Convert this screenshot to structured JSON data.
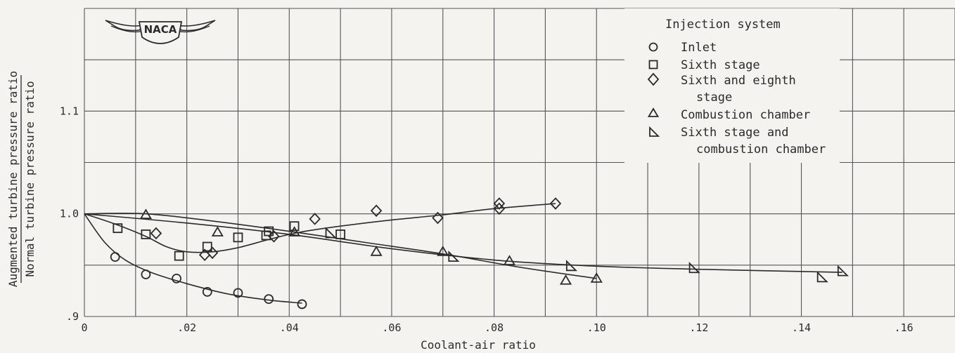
{
  "chart_data": {
    "type": "scatter",
    "xlabel": "Coolant-air ratio",
    "ylabel_numerator": "Augmented turbine pressure ratio",
    "ylabel_denominator": "Normal turbine pressure ratio",
    "xlim": [
      0,
      0.17
    ],
    "ylim": [
      0.9,
      1.2
    ],
    "x_tick_values": [
      0,
      0.02,
      0.04,
      0.06,
      0.08,
      0.1,
      0.12,
      0.14,
      0.16
    ],
    "x_tick_labels": [
      "0",
      ".02",
      ".04",
      ".06",
      ".08",
      ".10",
      ".12",
      ".14",
      ".16"
    ],
    "y_tick_values": [
      0.9,
      1.0,
      1.1
    ],
    "y_tick_labels": [
      ".9",
      "1.0",
      "1.1"
    ],
    "grid": true,
    "legend_title": "Injection system",
    "legend_position": "top-right",
    "logo_text": "NACA",
    "series": [
      {
        "name": "Inlet",
        "marker": "circle",
        "points": [
          [
            0.006,
            0.958
          ],
          [
            0.012,
            0.941
          ],
          [
            0.018,
            0.937
          ],
          [
            0.024,
            0.924
          ],
          [
            0.03,
            0.923
          ],
          [
            0.036,
            0.917
          ],
          [
            0.0425,
            0.912
          ]
        ],
        "curve": [
          [
            0,
            1.0
          ],
          [
            0.004,
            0.972
          ],
          [
            0.008,
            0.955
          ],
          [
            0.013,
            0.943
          ],
          [
            0.02,
            0.932
          ],
          [
            0.028,
            0.922
          ],
          [
            0.036,
            0.916
          ],
          [
            0.0425,
            0.913
          ]
        ]
      },
      {
        "name": "Sixth stage",
        "marker": "square",
        "points": [
          [
            0.0065,
            0.986
          ],
          [
            0.012,
            0.98
          ],
          [
            0.0185,
            0.959
          ],
          [
            0.024,
            0.968
          ],
          [
            0.03,
            0.977
          ],
          [
            0.0355,
            0.979
          ],
          [
            0.036,
            0.983
          ],
          [
            0.041,
            0.988
          ],
          [
            0.05,
            0.98
          ]
        ],
        "curve": null
      },
      {
        "name": "Sixth and eighth stage",
        "marker": "diamond",
        "points": [
          [
            0.014,
            0.981
          ],
          [
            0.0235,
            0.96
          ],
          [
            0.025,
            0.962
          ],
          [
            0.037,
            0.978
          ],
          [
            0.045,
            0.995
          ],
          [
            0.057,
            1.003
          ],
          [
            0.069,
            0.996
          ],
          [
            0.081,
            1.01
          ],
          [
            0.081,
            1.005
          ],
          [
            0.092,
            1.01
          ]
        ],
        "curve": [
          [
            0,
            1.0
          ],
          [
            0.006,
            0.99
          ],
          [
            0.012,
            0.978
          ],
          [
            0.016,
            0.968
          ],
          [
            0.02,
            0.963
          ],
          [
            0.025,
            0.963
          ],
          [
            0.03,
            0.967
          ],
          [
            0.036,
            0.975
          ],
          [
            0.042,
            0.982
          ],
          [
            0.05,
            0.988
          ],
          [
            0.06,
            0.994
          ],
          [
            0.07,
            0.999
          ],
          [
            0.08,
            1.005
          ],
          [
            0.092,
            1.01
          ]
        ]
      },
      {
        "name": "Combustion chamber",
        "marker": "triangle",
        "points": [
          [
            0.012,
            0.999
          ],
          [
            0.026,
            0.982
          ],
          [
            0.041,
            0.982
          ],
          [
            0.057,
            0.963
          ],
          [
            0.07,
            0.963
          ],
          [
            0.083,
            0.954
          ],
          [
            0.094,
            0.935
          ],
          [
            0.1,
            0.937
          ]
        ],
        "curve": [
          [
            0,
            1.0
          ],
          [
            0.012,
            1.0
          ],
          [
            0.025,
            0.993
          ],
          [
            0.04,
            0.983
          ],
          [
            0.055,
            0.972
          ],
          [
            0.07,
            0.961
          ],
          [
            0.085,
            0.948
          ],
          [
            0.1,
            0.937
          ]
        ]
      },
      {
        "name": "Sixth stage and combustion chamber",
        "marker": "right-triangle",
        "points": [
          [
            0.048,
            0.981
          ],
          [
            0.072,
            0.958
          ],
          [
            0.095,
            0.949
          ],
          [
            0.119,
            0.947
          ],
          [
            0.144,
            0.938
          ],
          [
            0.148,
            0.944
          ]
        ],
        "curve": [
          [
            0,
            1.0
          ],
          [
            0.02,
            0.991
          ],
          [
            0.04,
            0.98
          ],
          [
            0.06,
            0.966
          ],
          [
            0.08,
            0.955
          ],
          [
            0.1,
            0.949
          ],
          [
            0.12,
            0.946
          ],
          [
            0.148,
            0.943
          ]
        ]
      }
    ]
  }
}
